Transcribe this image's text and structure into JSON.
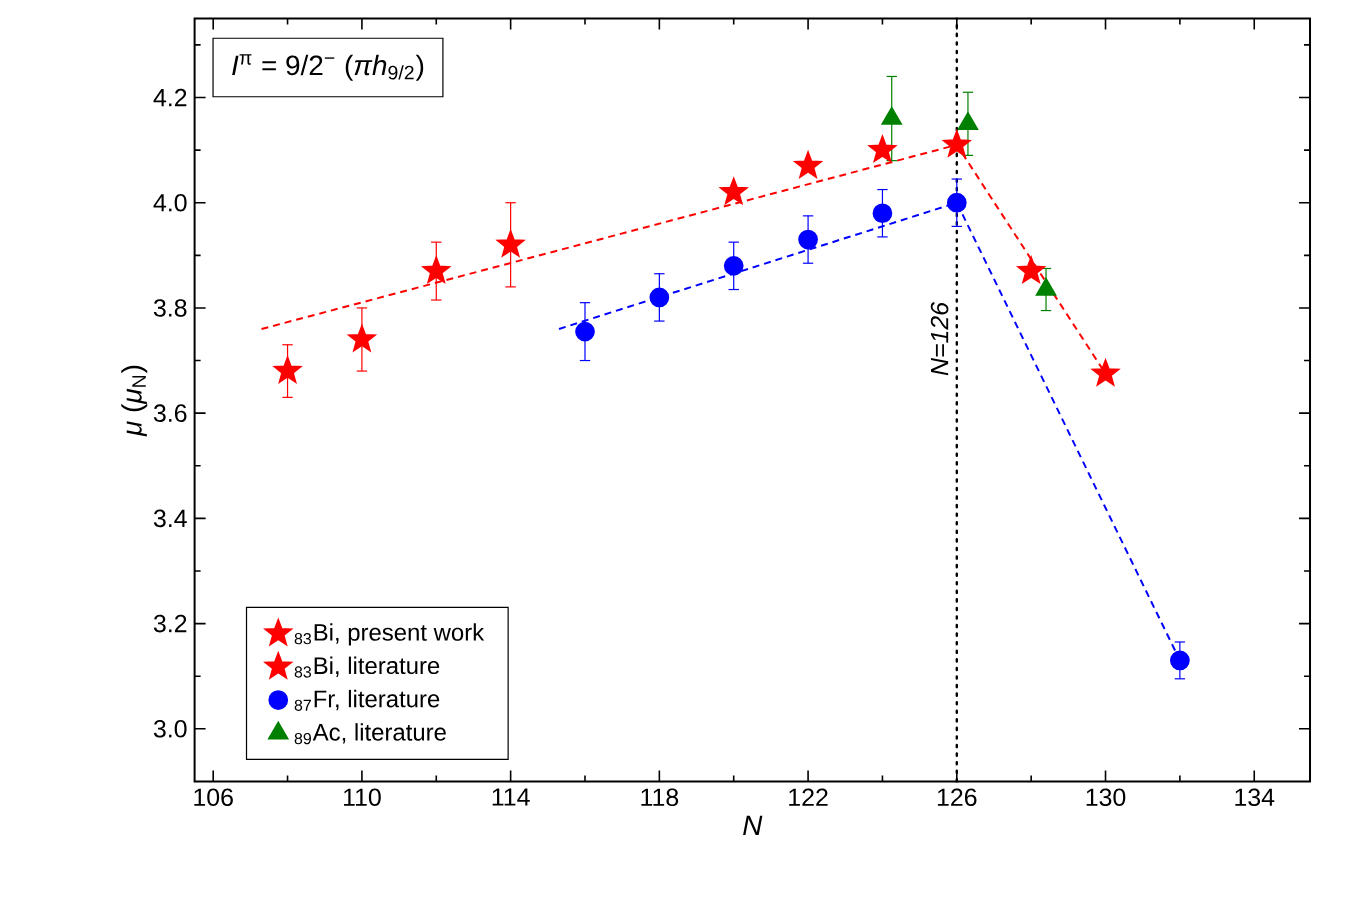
{
  "chart_data": {
    "type": "scatter",
    "xlabel": "N",
    "ylabel": "*μ* (*μ*$_{N}$)",
    "annotations": [
      "*I*$^{π}$ = 9/2$^{−}$ (*πh*$_{9/2}$)"
    ],
    "xlim": [
      105.5,
      135.5
    ],
    "xticks": [
      106,
      {
        "value": 108,
        "label": null
      },
      110,
      {
        "value": 112,
        "label": null
      },
      114,
      {
        "value": 116,
        "label": null
      },
      118,
      {
        "value": 120,
        "label": null
      },
      122,
      {
        "value": 124,
        "label": null
      },
      126,
      {
        "value": 128,
        "label": null
      },
      130,
      {
        "value": 132,
        "label": null
      },
      134
    ],
    "ylim": [
      2.9,
      4.35
    ],
    "yticks": [
      {
        "value": 3.0,
        "label": "3.0"
      },
      {
        "value": 3.1,
        "label": null
      },
      {
        "value": 3.2,
        "label": "3.2"
      },
      {
        "value": 3.3,
        "label": null
      },
      {
        "value": 3.4,
        "label": "3.4"
      },
      {
        "value": 3.5,
        "label": null
      },
      {
        "value": 3.6,
        "label": "3.6"
      },
      {
        "value": 3.7,
        "label": null
      },
      {
        "value": 3.8,
        "label": "3.8"
      },
      {
        "value": 3.9,
        "label": null
      },
      {
        "value": 4.0,
        "label": "4.0"
      },
      {
        "value": 4.1,
        "label": null
      },
      {
        "value": 4.2,
        "label": "4.2"
      },
      {
        "value": 4.3,
        "label": null
      }
    ],
    "legend": "bottom left",
    "ref_lines": [
      {
        "axis": "x",
        "value": 126,
        "label": "N=126",
        "line_style": "dotted",
        "color": "#000000"
      }
    ],
    "series": [
      {
        "type": "line",
        "color": "#ff0000",
        "line_style": "dashed",
        "marker": "none",
        "x": [
          107.3,
          126,
          130
        ],
        "values": [
          3.76,
          4.11,
          3.675
        ]
      },
      {
        "type": "line",
        "color": "#0000ff",
        "line_style": "dashed",
        "marker": "none",
        "x": [
          115.3,
          126,
          132
        ],
        "values": [
          3.76,
          4.0,
          3.13
        ]
      },
      {
        "name": "$_{83}$Bi, present work",
        "color": "#ff0000",
        "marker": "star",
        "x": [
          128
        ],
        "values": [
          3.87
        ]
      },
      {
        "name": "$_{83}$Bi, literature",
        "color": "#ff0000",
        "marker": "star",
        "x": [
          108,
          110,
          112,
          114,
          120,
          122,
          124,
          126,
          130
        ],
        "values": [
          3.68,
          3.74,
          3.87,
          3.92,
          4.02,
          4.07,
          4.1,
          4.11,
          3.675
        ],
        "errors": [
          0.05,
          0.06,
          0.055,
          0.08,
          null,
          null,
          null,
          null,
          null
        ]
      },
      {
        "name": "$_{87}$Fr, literature",
        "color": "#0000ff",
        "marker": "circle",
        "x": [
          116,
          118,
          120,
          122,
          124,
          126,
          132
        ],
        "values": [
          3.755,
          3.82,
          3.88,
          3.93,
          3.98,
          4.0,
          3.13
        ],
        "errors": [
          0.055,
          0.045,
          0.045,
          0.045,
          0.045,
          0.045,
          0.035
        ]
      },
      {
        "name": "$_{89}$Ac, literature",
        "color": "#008000",
        "marker": "triangle",
        "x": [
          124.25,
          126.3,
          128.4
        ],
        "values": [
          4.16,
          4.15,
          3.835
        ],
        "errors": [
          0.08,
          0.06,
          0.04
        ]
      }
    ]
  }
}
